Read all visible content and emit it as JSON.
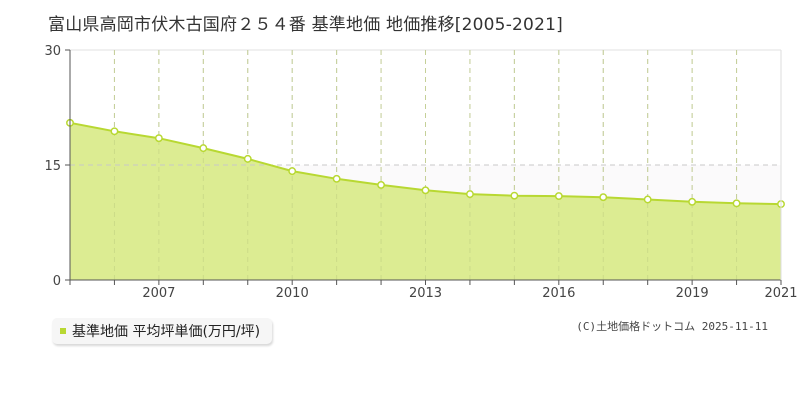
{
  "title": "富山県高岡市伏木古国府２５４番 基準地価 地価推移[2005-2021]",
  "legend": {
    "label": "基準地価 平均坪単価(万円/坪)",
    "color": "#b8d832"
  },
  "credit": "(C)土地価格ドットコム 2025-11-11",
  "colors": {
    "fill": "#dcec92",
    "line": "#b8d832",
    "marker_fill": "#ffffff",
    "upper_band": "#fbfafb",
    "grid": "#c8c8c8",
    "axis": "#555555"
  },
  "chart_data": {
    "type": "area",
    "title": "富山県高岡市伏木古国府２５４番 基準地価 地価推移[2005-2021]",
    "xlabel": "",
    "ylabel": "",
    "x": [
      2005,
      2006,
      2007,
      2008,
      2009,
      2010,
      2011,
      2012,
      2013,
      2014,
      2015,
      2016,
      2017,
      2018,
      2019,
      2020,
      2021
    ],
    "series": [
      {
        "name": "基準地価 平均坪単価(万円/坪)",
        "values": [
          20.5,
          19.4,
          18.5,
          17.2,
          15.8,
          14.2,
          13.2,
          12.4,
          11.7,
          11.2,
          11.0,
          10.95,
          10.8,
          10.5,
          10.2,
          10.0,
          9.9
        ]
      }
    ],
    "ylim": [
      0,
      30
    ],
    "yticks": [
      0,
      15,
      30
    ],
    "xlim": [
      2005,
      2021
    ],
    "xtick_labels": [
      "2007",
      "2010",
      "2013",
      "2016",
      "2019",
      "2021"
    ],
    "grid": {
      "vertical": "dashed every year",
      "horizontal": "dashed at 15"
    },
    "legend_position": "bottom-left"
  }
}
